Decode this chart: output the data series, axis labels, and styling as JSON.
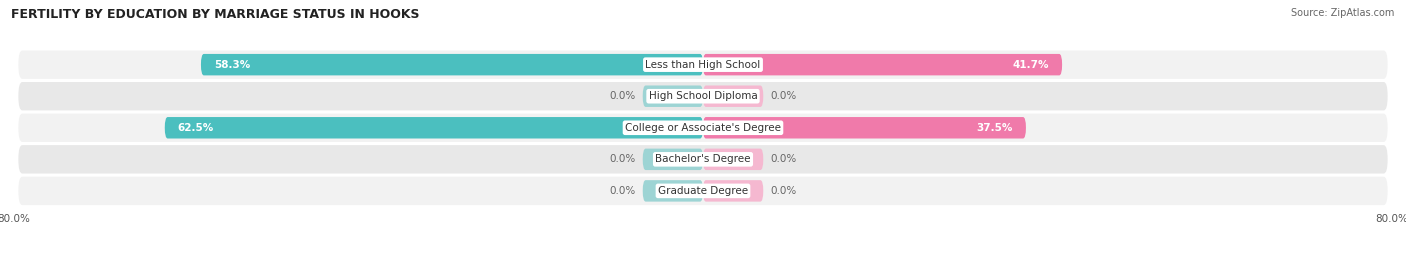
{
  "title": "FERTILITY BY EDUCATION BY MARRIAGE STATUS IN HOOKS",
  "source": "Source: ZipAtlas.com",
  "categories": [
    "Less than High School",
    "High School Diploma",
    "College or Associate's Degree",
    "Bachelor's Degree",
    "Graduate Degree"
  ],
  "married_values": [
    58.3,
    0.0,
    62.5,
    0.0,
    0.0
  ],
  "unmarried_values": [
    41.7,
    0.0,
    37.5,
    0.0,
    0.0
  ],
  "married_color_full": "#4bbfbf",
  "married_color_light": "#9dd4d4",
  "unmarried_color_full": "#f07aaa",
  "unmarried_color_light": "#f5b8d0",
  "xlim_left": -80.0,
  "xlim_right": 80.0,
  "title_fontsize": 9,
  "label_fontsize": 7.5,
  "value_fontsize": 7.5,
  "legend_fontsize": 8,
  "source_fontsize": 7
}
